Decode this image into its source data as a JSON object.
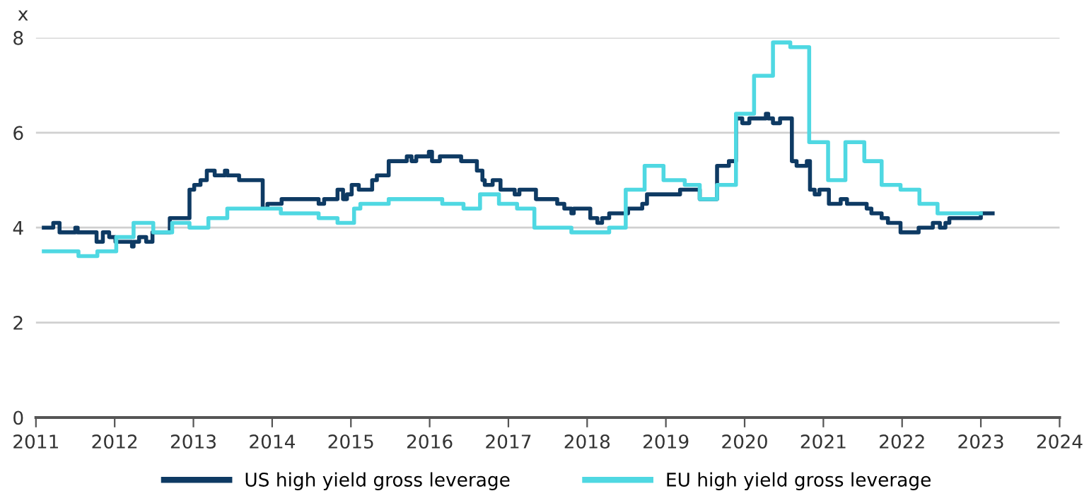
{
  "chart_data": {
    "type": "step",
    "ylabel": "x",
    "xlim": [
      2011,
      2024
    ],
    "ylim": [
      0,
      8
    ],
    "xticks": [
      2011,
      2012,
      2013,
      2014,
      2015,
      2016,
      2017,
      2018,
      2019,
      2020,
      2021,
      2022,
      2023,
      2024
    ],
    "yticks": [
      0,
      2,
      4,
      6,
      8
    ],
    "grid": "y",
    "legend": "bottom",
    "marker": "none",
    "line_style": "solid",
    "series": [
      {
        "name": "US high yield gross leverage",
        "color": "#0e3a63",
        "x": [
          2011.1,
          2011.22,
          2011.3,
          2011.5,
          2011.53,
          2011.77,
          2011.85,
          2011.93,
          2012.01,
          2012.22,
          2012.24,
          2012.31,
          2012.4,
          2012.48,
          2012.7,
          2012.95,
          2013.01,
          2013.09,
          2013.17,
          2013.27,
          2013.4,
          2013.43,
          2013.58,
          2013.88,
          2013.94,
          2014.12,
          2014.59,
          2014.66,
          2014.83,
          2014.9,
          2014.95,
          2015.01,
          2015.1,
          2015.27,
          2015.33,
          2015.48,
          2015.71,
          2015.77,
          2015.83,
          2015.99,
          2016.03,
          2016.13,
          2016.4,
          2016.6,
          2016.67,
          2016.7,
          2016.8,
          2016.9,
          2017.08,
          2017.14,
          2017.35,
          2017.62,
          2017.71,
          2017.8,
          2017.83,
          2017.89,
          2018.04,
          2018.13,
          2018.19,
          2018.28,
          2018.52,
          2018.7,
          2018.76,
          2019.18,
          2019.43,
          2019.65,
          2019.8,
          2019.89,
          2019.97,
          2020.06,
          2020.27,
          2020.3,
          2020.36,
          2020.45,
          2020.6,
          2020.66,
          2020.79,
          2020.83,
          2020.89,
          2020.95,
          2021.07,
          2021.22,
          2021.3,
          2021.55,
          2021.61,
          2021.74,
          2021.82,
          2021.98,
          2022.21,
          2022.39,
          2022.48,
          2022.55,
          2022.6,
          2023.0,
          2023.15
        ],
        "values": [
          4.0,
          4.1,
          3.9,
          4.0,
          3.9,
          3.7,
          3.9,
          3.8,
          3.7,
          3.6,
          3.7,
          3.8,
          3.7,
          3.9,
          4.2,
          4.8,
          4.9,
          5.0,
          5.2,
          5.1,
          5.2,
          5.1,
          5.0,
          4.4,
          4.5,
          4.6,
          4.5,
          4.6,
          4.8,
          4.6,
          4.7,
          4.9,
          4.8,
          5.0,
          5.1,
          5.4,
          5.5,
          5.4,
          5.5,
          5.6,
          5.4,
          5.5,
          5.4,
          5.2,
          5.0,
          4.9,
          5.0,
          4.8,
          4.7,
          4.8,
          4.6,
          4.5,
          4.4,
          4.3,
          4.4,
          4.4,
          4.2,
          4.1,
          4.2,
          4.3,
          4.4,
          4.5,
          4.7,
          4.8,
          4.6,
          5.3,
          5.4,
          6.3,
          6.2,
          6.3,
          6.4,
          6.3,
          6.2,
          6.3,
          5.4,
          5.3,
          5.4,
          4.8,
          4.7,
          4.8,
          4.5,
          4.6,
          4.5,
          4.4,
          4.3,
          4.2,
          4.1,
          3.9,
          4.0,
          4.1,
          4.0,
          4.1,
          4.2,
          4.3,
          4.3
        ]
      },
      {
        "name": "EU high yield gross leverage",
        "color": "#4fd8e2",
        "x": [
          2011.1,
          2011.54,
          2011.78,
          2012.02,
          2012.24,
          2012.49,
          2012.73,
          2012.95,
          2013.19,
          2013.43,
          2014.11,
          2014.59,
          2014.83,
          2015.04,
          2015.12,
          2015.48,
          2016.16,
          2016.43,
          2016.64,
          2016.88,
          2017.11,
          2017.33,
          2017.8,
          2018.28,
          2018.49,
          2018.73,
          2018.97,
          2019.24,
          2019.43,
          2019.65,
          2019.89,
          2020.12,
          2020.36,
          2020.58,
          2020.82,
          2021.06,
          2021.28,
          2021.52,
          2021.74,
          2021.98,
          2022.22,
          2022.45,
          2023.0
        ],
        "values": [
          3.5,
          3.4,
          3.5,
          3.8,
          4.1,
          3.9,
          4.1,
          4.0,
          4.2,
          4.4,
          4.3,
          4.2,
          4.1,
          4.4,
          4.5,
          4.6,
          4.5,
          4.4,
          4.7,
          4.5,
          4.4,
          4.0,
          3.9,
          4.0,
          4.8,
          5.3,
          5.0,
          4.9,
          4.6,
          4.9,
          6.4,
          7.2,
          7.9,
          7.8,
          5.8,
          5.0,
          5.8,
          5.4,
          4.9,
          4.8,
          4.5,
          4.3,
          4.3
        ]
      }
    ]
  }
}
